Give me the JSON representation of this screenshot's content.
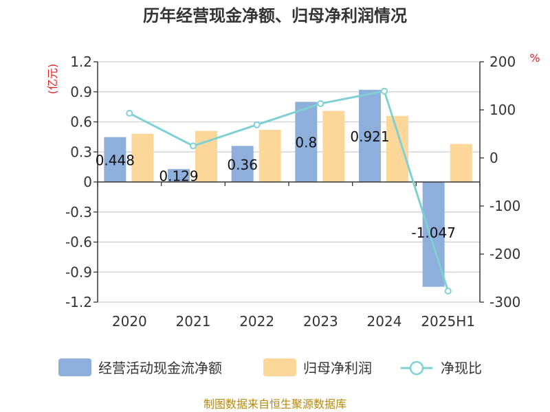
{
  "chart_data": {
    "type": "bar",
    "title": "历年经营现金净额、归母净利润情况",
    "categories": [
      "2020",
      "2021",
      "2022",
      "2023",
      "2024",
      "2025H1"
    ],
    "y_left": {
      "unit": "(亿元)",
      "ylim": [
        -1.2,
        1.2
      ],
      "ticks": [
        1.2,
        0.9,
        0.6,
        0.3,
        0,
        -0.3,
        -0.6,
        -0.9,
        -1.2
      ]
    },
    "y_right": {
      "unit": "%",
      "ylim": [
        -300,
        200
      ],
      "ticks": [
        200,
        100,
        0,
        -100,
        -200,
        -300
      ]
    },
    "series": [
      {
        "name": "经营活动现金流净额",
        "kind": "bar",
        "axis": "left",
        "color": "#8eaedb",
        "values": [
          0.448,
          0.129,
          0.36,
          0.8,
          0.921,
          -1.047
        ],
        "labels": [
          "0.448",
          "0.129",
          "0.36",
          "0.8",
          "0.921",
          "-1.047"
        ]
      },
      {
        "name": "归母净利润",
        "kind": "bar",
        "axis": "left",
        "color": "#fdd79a",
        "values": [
          0.48,
          0.51,
          0.52,
          0.71,
          0.66,
          0.38
        ]
      },
      {
        "name": "净现比",
        "kind": "line",
        "axis": "right",
        "color": "#7fd0d3",
        "values": [
          93,
          25,
          69,
          113,
          139,
          -277
        ]
      }
    ],
    "grid": true,
    "legend": "bottom"
  },
  "source": "制图数据来自恒生聚源数据库"
}
